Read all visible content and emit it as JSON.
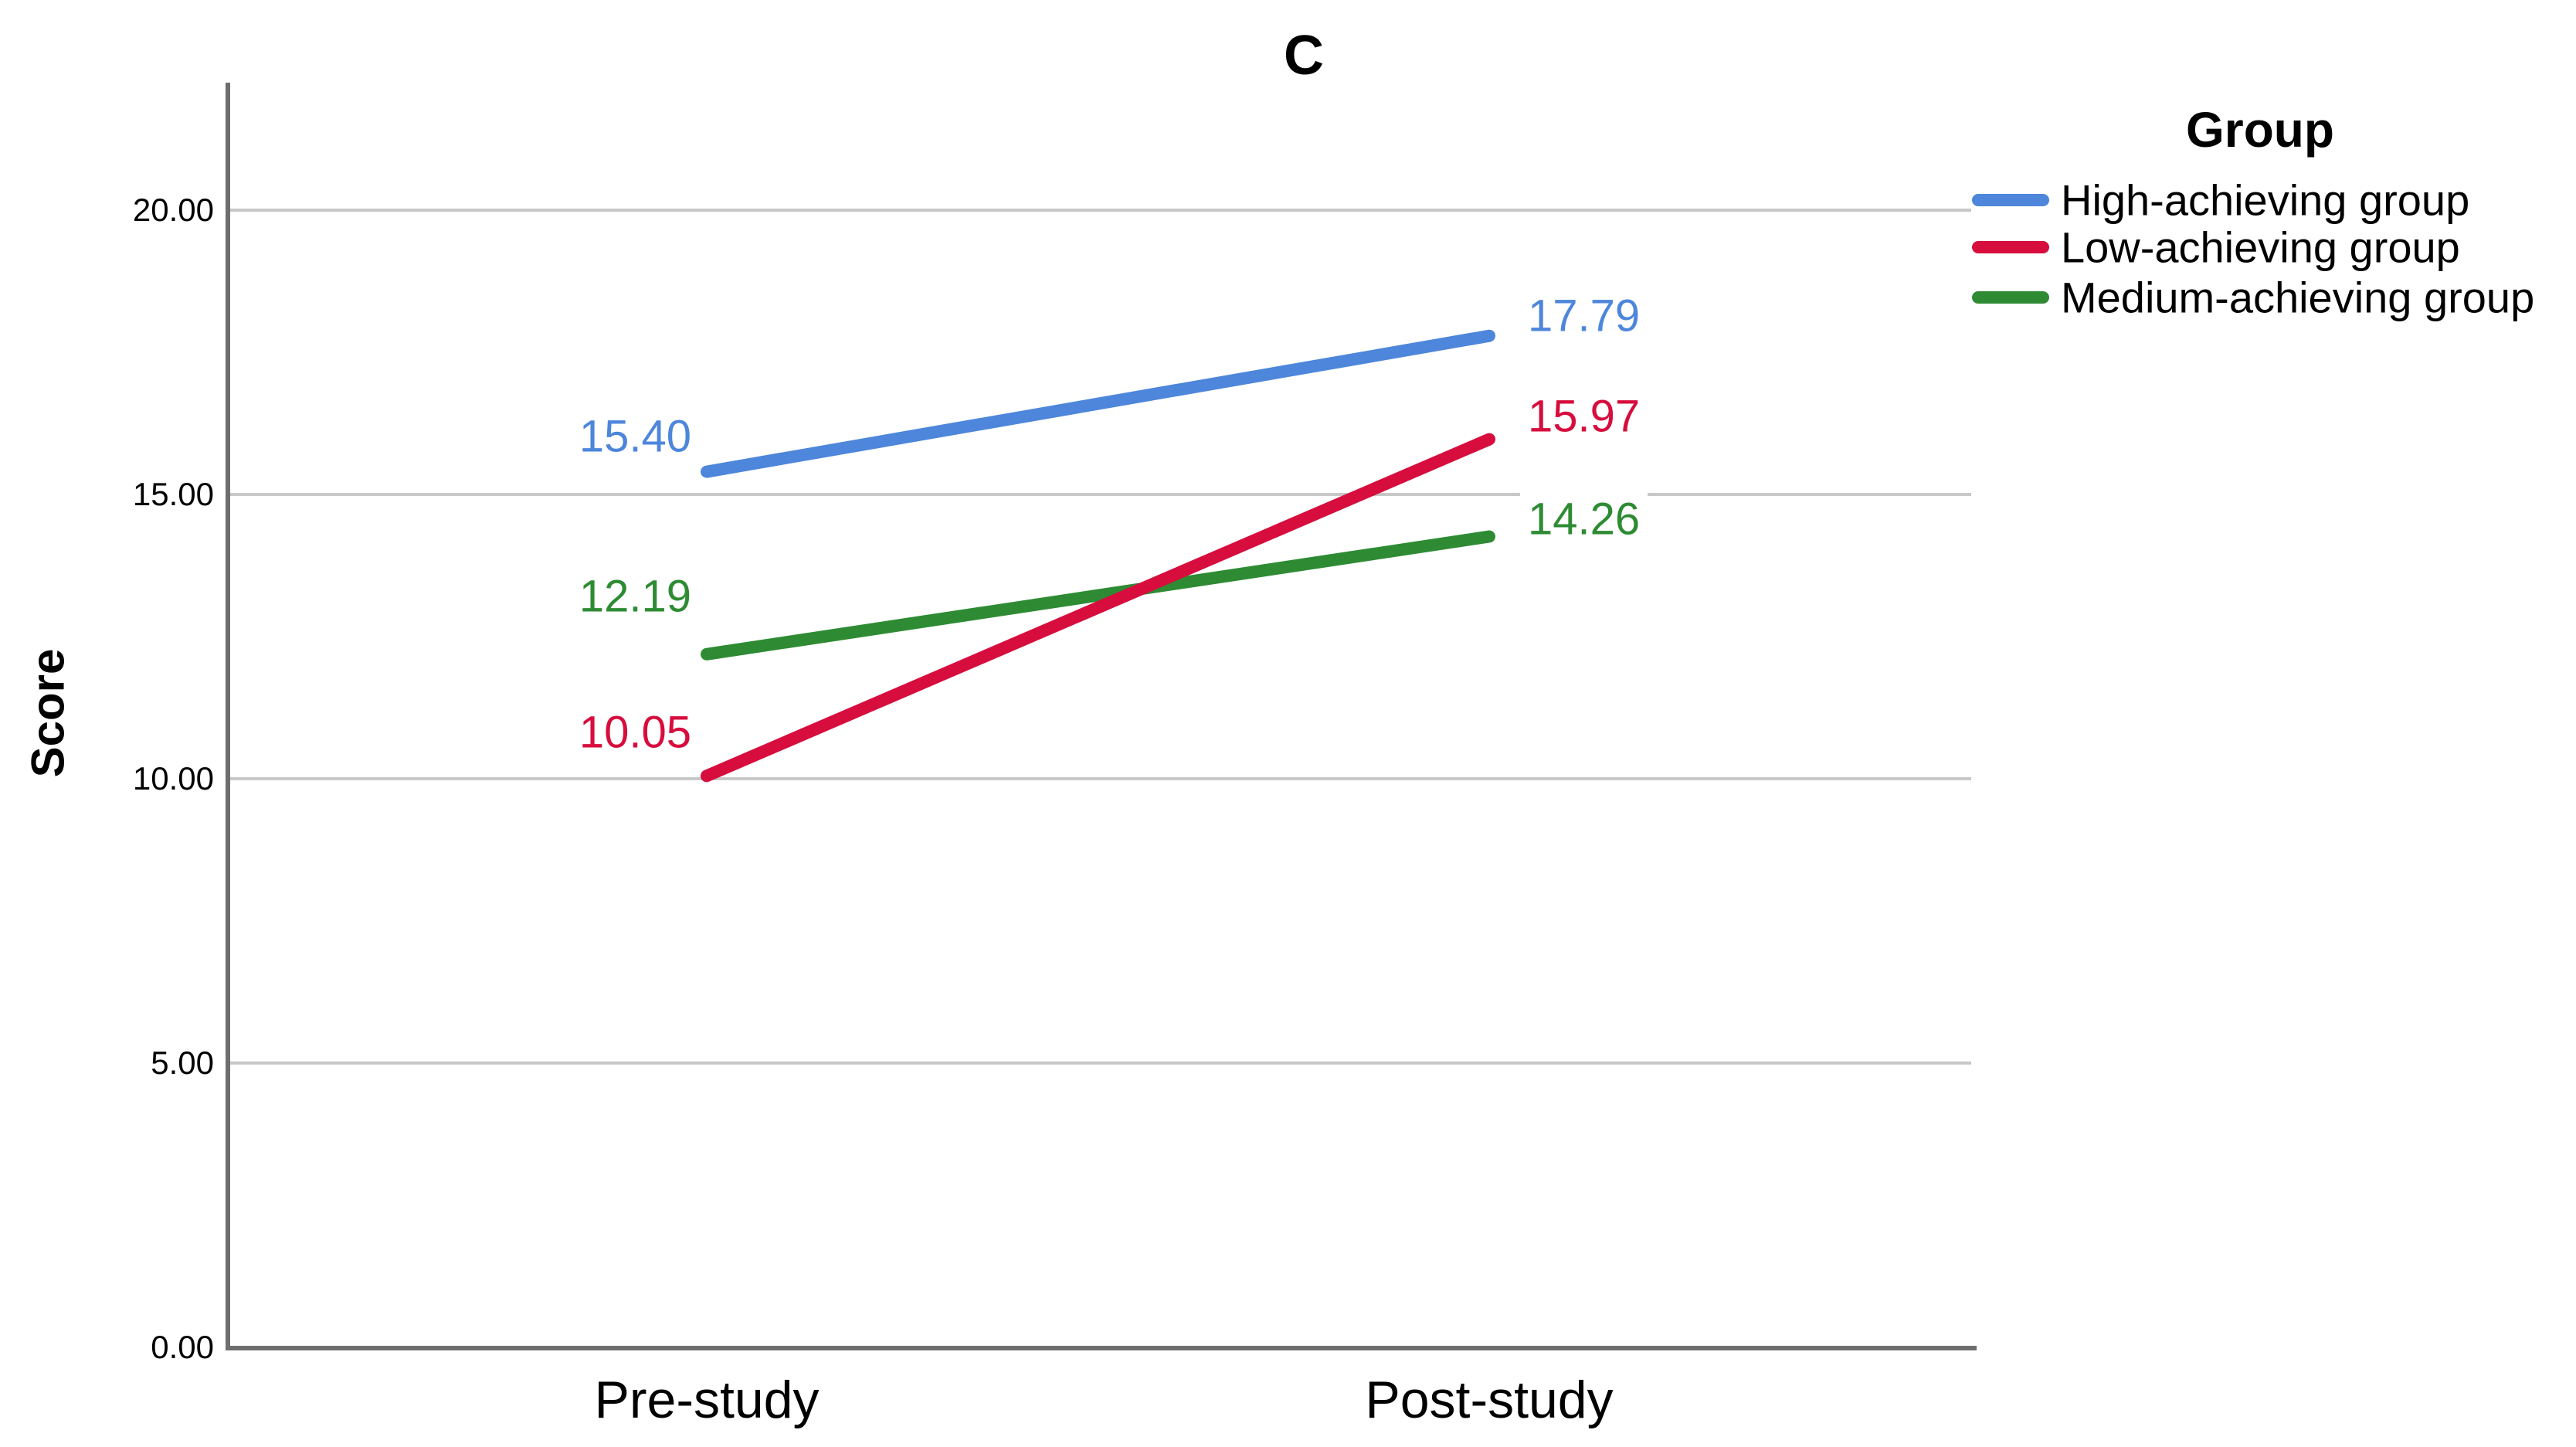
{
  "title": "C",
  "axes": {
    "y_label": "Score",
    "y_ticks": [
      "0.00",
      "5.00",
      "10.00",
      "15.00",
      "20.00"
    ],
    "x_categories": [
      "Pre-study",
      "Post-study"
    ]
  },
  "legend": {
    "title": "Group",
    "entries": [
      {
        "label": "High-achieving group",
        "color": "#4D86DB"
      },
      {
        "label": "Low-achieving group",
        "color": "#D60D3D"
      },
      {
        "label": "Medium-achieving group",
        "color": "#2E8B33"
      }
    ]
  },
  "chart_data": {
    "type": "line",
    "title": "C",
    "xlabel": "",
    "ylabel": "Score",
    "categories": [
      "Pre-study",
      "Post-study"
    ],
    "series": [
      {
        "name": "High-achieving group",
        "color": "#4D86DB",
        "values": [
          15.4,
          17.79
        ],
        "labels": [
          "15.40",
          "17.79"
        ]
      },
      {
        "name": "Low-achieving group",
        "color": "#D60D3D",
        "values": [
          10.05,
          15.97
        ],
        "labels": [
          "10.05",
          "15.97"
        ]
      },
      {
        "name": "Medium-achieving group",
        "color": "#2E8B33",
        "values": [
          12.19,
          14.26
        ],
        "labels": [
          "12.19",
          "14.26"
        ]
      }
    ],
    "y_tick_values": [
      0,
      5,
      10,
      15,
      20
    ],
    "ylim": [
      0,
      22.25
    ],
    "grid": true,
    "gridline_color": "#C8C8C8",
    "axis_color": "#6E6E6E",
    "legend_title": "Group",
    "legend_position": "right"
  }
}
